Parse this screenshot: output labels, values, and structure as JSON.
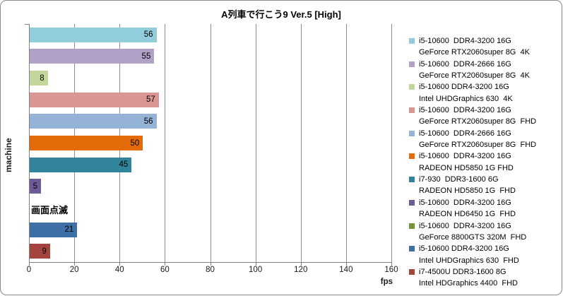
{
  "chart_data": {
    "type": "bar",
    "orientation": "horizontal",
    "title": "A列車で行こう9 Ver.5 [High]",
    "xlabel": "fps",
    "ylabel": "machine",
    "xlim": [
      0,
      160
    ],
    "xticks": [
      0,
      20,
      40,
      60,
      80,
      100,
      120,
      140,
      160
    ],
    "grid": "vertical",
    "legend_position": "right",
    "series": [
      {
        "label_line1": "i5-10600  DDR4-3200 16G",
        "label_line2": "GeForce RTX2060super 8G  4K",
        "value": 56,
        "color": "#92CDDC"
      },
      {
        "label_line1": "i5-10600  DDR4-2666 16G",
        "label_line2": "GeForce RTX2060super 8G  4K",
        "value": 55,
        "color": "#B2A1C7"
      },
      {
        "label_line1": "i5-10600 DDR4-3200 16G",
        "label_line2": "Intel UHDGraphics 630  4K",
        "value": 8,
        "color": "#C3D69B"
      },
      {
        "label_line1": "i5-10600  DDR4-3200 16G",
        "label_line2": "GeForce RTX2060super 8G  FHD",
        "value": 57,
        "color": "#D99694"
      },
      {
        "label_line1": "i5-10600  DDR4-2666 16G",
        "label_line2": "GeForce RTX2060super 8G  FHD",
        "value": 56,
        "color": "#95B3D7"
      },
      {
        "label_line1": "i5-10600  DDR4-3200 16G",
        "label_line2": "RADEON HD5850 1G FHD",
        "value": 50,
        "color": "#E36C09"
      },
      {
        "label_line1": "i7-930  DDR3-1600 6G",
        "label_line2": "RADEON HD5850 1G  FHD",
        "value": 45,
        "color": "#31849B"
      },
      {
        "label_line1": "i5-10600  DDR4-3200 16G",
        "label_line2": "RADEON HD6450 1G  FHD",
        "value": 5,
        "color": "#6E5A96"
      },
      {
        "label_line1": "i5-10600  DDR4-3200 16G",
        "label_line2": "GeForce 8800GTS 320M  FHD",
        "value": null,
        "annotation": "画面点滅",
        "color": "#77933C"
      },
      {
        "label_line1": "i5-10600 DDR4-3200 16G",
        "label_line2": "Intel UHDGraphics 630  FHD",
        "value": 21,
        "color": "#3E6FA6"
      },
      {
        "label_line1": "i7-4500U DDR3-1600 8G",
        "label_line2": "Intel HDGraphics 4400  FHD",
        "value": 9,
        "color": "#A5433F"
      }
    ]
  }
}
